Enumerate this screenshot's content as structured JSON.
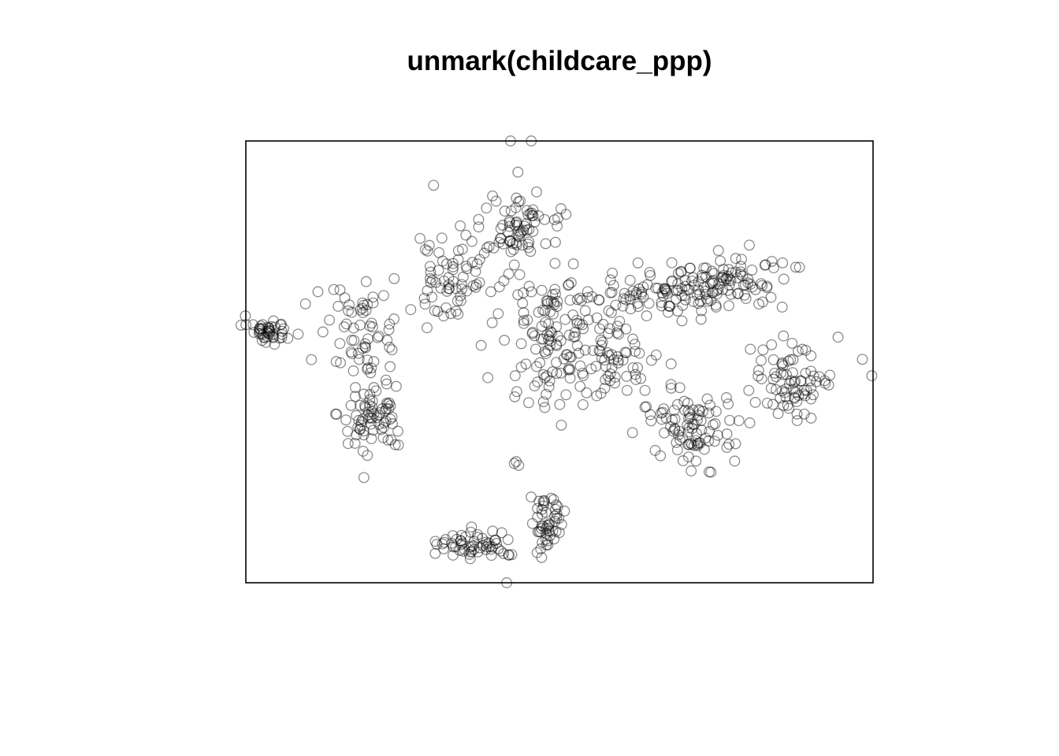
{
  "chart_data": {
    "type": "scatter",
    "title": "unmark(childcare_ppp)",
    "xlabel": "",
    "ylabel": "",
    "axes_shown": false,
    "grid": false,
    "marker": "open-circle",
    "marker_color": "#000000",
    "marker_opacity": 0.45,
    "frame_color": "#000000",
    "xlim": [
      0,
      1000
    ],
    "ylim": [
      0,
      700
    ],
    "clusters": [
      {
        "cx": 370,
        "cy": 640,
        "sx": 55,
        "sy": 18,
        "n": 60
      },
      {
        "cx": 480,
        "cy": 600,
        "sx": 22,
        "sy": 40,
        "n": 50
      },
      {
        "cx": 575,
        "cy": 350,
        "sx": 70,
        "sy": 80,
        "n": 70
      },
      {
        "cx": 712,
        "cy": 455,
        "sx": 55,
        "sy": 50,
        "n": 90
      },
      {
        "cx": 870,
        "cy": 380,
        "sx": 55,
        "sy": 45,
        "n": 75
      },
      {
        "cx": 200,
        "cy": 435,
        "sx": 45,
        "sy": 50,
        "n": 70
      },
      {
        "cx": 40,
        "cy": 300,
        "sx": 30,
        "sy": 15,
        "n": 45
      },
      {
        "cx": 190,
        "cy": 310,
        "sx": 50,
        "sy": 60,
        "n": 60
      },
      {
        "cx": 320,
        "cy": 215,
        "sx": 60,
        "sy": 60,
        "n": 70
      },
      {
        "cx": 440,
        "cy": 135,
        "sx": 55,
        "sy": 50,
        "n": 70
      },
      {
        "cx": 480,
        "cy": 310,
        "sx": 60,
        "sy": 100,
        "n": 110
      },
      {
        "cx": 650,
        "cy": 240,
        "sx": 90,
        "sy": 35,
        "n": 90
      },
      {
        "cx": 780,
        "cy": 220,
        "sx": 75,
        "sy": 35,
        "n": 80
      }
    ],
    "points": [
      [
        416,
        700
      ],
      [
        455,
        0
      ],
      [
        422,
        0
      ],
      [
        998,
        372
      ],
      [
        983,
        346
      ],
      [
        428,
        511
      ],
      [
        431,
        508
      ],
      [
        435,
        514
      ],
      [
        95,
        258
      ],
      [
        115,
        239
      ]
    ]
  }
}
